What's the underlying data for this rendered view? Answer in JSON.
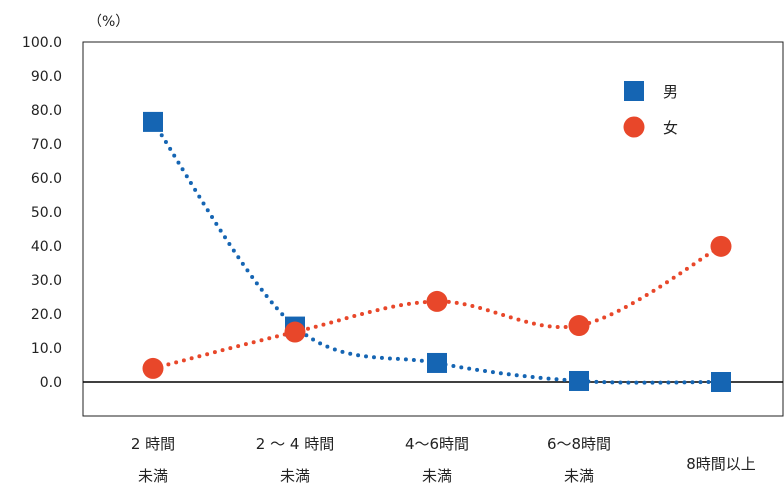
{
  "chart_data": {
    "type": "line",
    "unit_label": "（%）",
    "categories": [
      [
        "2 時間",
        "未満"
      ],
      [
        "2 ～ 4 時間",
        "未満"
      ],
      [
        "4～6時間",
        "未満"
      ],
      [
        "6～8時間",
        "未満"
      ],
      [
        "8時間以上"
      ]
    ],
    "ylim": [
      -10,
      100
    ],
    "yticks": [
      "0.0",
      "10.0",
      "20.0",
      "30.0",
      "40.0",
      "50.0",
      "60.0",
      "70.0",
      "80.0",
      "90.0",
      "100.0"
    ],
    "smooth": true,
    "legend_position": "top-right",
    "series": [
      {
        "name": "男",
        "marker": "square",
        "color": "#1565b3",
        "values": [
          76.5,
          16.3,
          5.6,
          0.3,
          0.0
        ]
      },
      {
        "name": "女",
        "marker": "circle",
        "color": "#e8472a",
        "values": [
          4.0,
          14.7,
          23.7,
          16.6,
          39.9
        ]
      }
    ]
  }
}
